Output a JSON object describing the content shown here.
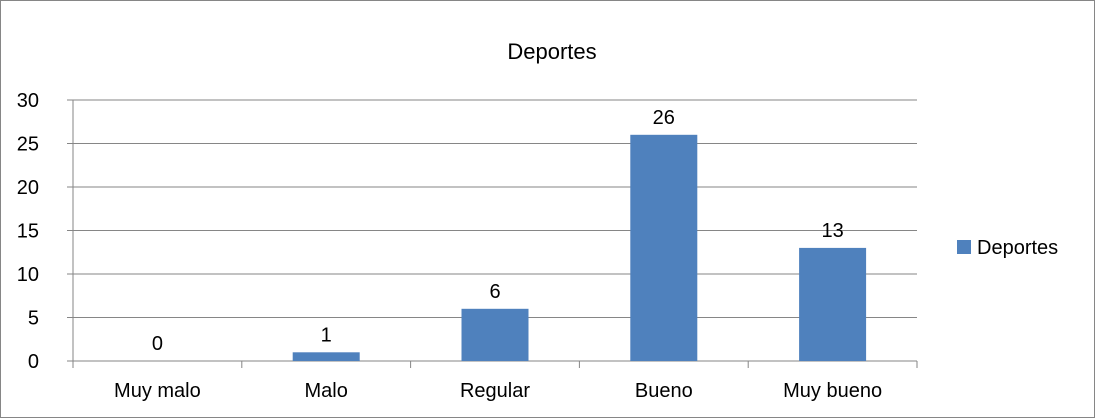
{
  "chart_data": {
    "type": "bar",
    "title": "Deportes",
    "categories": [
      "Muy malo",
      "Malo",
      "Regular",
      "Bueno",
      "Muy bueno"
    ],
    "series": [
      {
        "name": "Deportes",
        "values": [
          0,
          1,
          6,
          26,
          13
        ]
      }
    ],
    "data_labels": [
      "0",
      "1",
      "6",
      "26",
      "13"
    ],
    "y_ticks": [
      "0",
      "5",
      "10",
      "15",
      "20",
      "25",
      "30"
    ],
    "ylim": [
      0,
      30
    ],
    "xlabel": "",
    "ylabel": "",
    "grid": true,
    "legend_position": "right",
    "bar_color": "#4F81BD",
    "grid_color": "#868686"
  }
}
